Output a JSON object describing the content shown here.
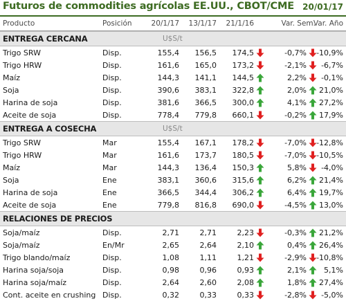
{
  "title": "Futuros de commodities agrícolas EE.UU., CBOT/CME",
  "date": "20/01/17",
  "headers": {
    "producto": "Producto",
    "posicion": "Posición",
    "d1": "20/1/17",
    "d2": "13/1/17",
    "d3": "21/1/16",
    "var_sem": "Var. Sem.",
    "var_anio": "Var. Año"
  },
  "colors": {
    "accent": "#3d6b22",
    "up": "#3aa63a",
    "down": "#e02020"
  },
  "sections": [
    {
      "label": "ENTREGA CERCANA",
      "unit": "U$S/t",
      "rows": [
        {
          "producto": "Trigo SRW",
          "posicion": "Disp.",
          "v1": "155,4",
          "v2": "156,5",
          "v3": "174,5",
          "dir_sem": "down",
          "var_sem": "-0,7%",
          "dir_anio": "down",
          "var_anio": "-10,9%"
        },
        {
          "producto": "Trigo HRW",
          "posicion": "Disp.",
          "v1": "161,6",
          "v2": "165,0",
          "v3": "173,2",
          "dir_sem": "down",
          "var_sem": "-2,1%",
          "dir_anio": "down",
          "var_anio": "-6,7%"
        },
        {
          "producto": "Maíz",
          "posicion": "Disp.",
          "v1": "144,3",
          "v2": "141,1",
          "v3": "144,5",
          "dir_sem": "up",
          "var_sem": "2,2%",
          "dir_anio": "down",
          "var_anio": "-0,1%"
        },
        {
          "producto": "Soja",
          "posicion": "Disp.",
          "v1": "390,6",
          "v2": "383,1",
          "v3": "322,8",
          "dir_sem": "up",
          "var_sem": "2,0%",
          "dir_anio": "up",
          "var_anio": "21,0%"
        },
        {
          "producto": "Harina de soja",
          "posicion": "Disp.",
          "v1": "381,6",
          "v2": "366,5",
          "v3": "300,0",
          "dir_sem": "up",
          "var_sem": "4,1%",
          "dir_anio": "up",
          "var_anio": "27,2%"
        },
        {
          "producto": "Aceite de soja",
          "posicion": "Disp.",
          "v1": "778,4",
          "v2": "779,8",
          "v3": "660,1",
          "dir_sem": "down",
          "var_sem": "-0,2%",
          "dir_anio": "up",
          "var_anio": "17,9%"
        }
      ]
    },
    {
      "label": "ENTREGA A COSECHA",
      "unit": "U$S/t",
      "rows": [
        {
          "producto": "Trigo SRW",
          "posicion": "Mar",
          "v1": "155,4",
          "v2": "167,1",
          "v3": "178,2",
          "dir_sem": "down",
          "var_sem": "-7,0%",
          "dir_anio": "down",
          "var_anio": "-12,8%"
        },
        {
          "producto": "Trigo HRW",
          "posicion": "Mar",
          "v1": "161,6",
          "v2": "173,7",
          "v3": "180,5",
          "dir_sem": "down",
          "var_sem": "-7,0%",
          "dir_anio": "down",
          "var_anio": "-10,5%"
        },
        {
          "producto": "Maíz",
          "posicion": "Mar",
          "v1": "144,3",
          "v2": "136,4",
          "v3": "150,3",
          "dir_sem": "up",
          "var_sem": "5,8%",
          "dir_anio": "down",
          "var_anio": "-4,0%"
        },
        {
          "producto": "Soja",
          "posicion": "Ene",
          "v1": "383,1",
          "v2": "360,6",
          "v3": "315,6",
          "dir_sem": "up",
          "var_sem": "6,2%",
          "dir_anio": "up",
          "var_anio": "21,4%"
        },
        {
          "producto": "Harina de soja",
          "posicion": "Ene",
          "v1": "366,5",
          "v2": "344,4",
          "v3": "306,2",
          "dir_sem": "up",
          "var_sem": "6,4%",
          "dir_anio": "up",
          "var_anio": "19,7%"
        },
        {
          "producto": "Aceite de soja",
          "posicion": "Ene",
          "v1": "779,8",
          "v2": "816,8",
          "v3": "690,0",
          "dir_sem": "down",
          "var_sem": "-4,5%",
          "dir_anio": "up",
          "var_anio": "13,0%"
        }
      ]
    },
    {
      "label": "RELACIONES DE PRECIOS",
      "unit": "",
      "rows": [
        {
          "producto": "Soja/maíz",
          "posicion": "Disp.",
          "v1": "2,71",
          "v2": "2,71",
          "v3": "2,23",
          "dir_sem": "down",
          "var_sem": "-0,3%",
          "dir_anio": "up",
          "var_anio": "21,2%"
        },
        {
          "producto": "Soja/maíz",
          "posicion": "En/Mr",
          "v1": "2,65",
          "v2": "2,64",
          "v3": "2,10",
          "dir_sem": "up",
          "var_sem": "0,4%",
          "dir_anio": "up",
          "var_anio": "26,4%"
        },
        {
          "producto": "Trigo blando/maíz",
          "posicion": "Disp.",
          "v1": "1,08",
          "v2": "1,11",
          "v3": "1,21",
          "dir_sem": "down",
          "var_sem": "-2,9%",
          "dir_anio": "down",
          "var_anio": "-10,8%"
        },
        {
          "producto": "Harina soja/soja",
          "posicion": "Disp.",
          "v1": "0,98",
          "v2": "0,96",
          "v3": "0,93",
          "dir_sem": "up",
          "var_sem": "2,1%",
          "dir_anio": "up",
          "var_anio": "5,1%"
        },
        {
          "producto": "Harina soja/maíz",
          "posicion": "Disp.",
          "v1": "2,64",
          "v2": "2,60",
          "v3": "2,08",
          "dir_sem": "up",
          "var_sem": "1,8%",
          "dir_anio": "up",
          "var_anio": "27,4%"
        },
        {
          "producto": "Cont. aceite en crushing",
          "posicion": "Disp.",
          "v1": "0,32",
          "v2": "0,33",
          "v3": "0,33",
          "dir_sem": "down",
          "var_sem": "-2,8%",
          "dir_anio": "down",
          "var_anio": "-5,0%"
        }
      ]
    }
  ]
}
